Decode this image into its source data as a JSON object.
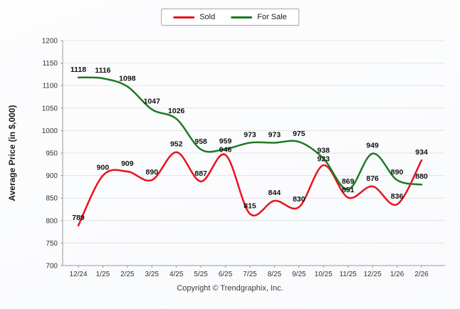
{
  "footer": "Copyright © Trendgraphix, Inc.",
  "chart_data": {
    "type": "line",
    "title": "",
    "xlabel": "",
    "ylabel": "Average Price (in $,000)",
    "categories": [
      "12/24",
      "1/25",
      "2/25",
      "3/25",
      "4/25",
      "5/25",
      "6/25",
      "7/25",
      "8/25",
      "9/25",
      "10/25",
      "11/25",
      "12/25",
      "1/26",
      "2/26"
    ],
    "series": [
      {
        "name": "Sold",
        "color": "#e8131d",
        "values": [
          789,
          900,
          909,
          890,
          952,
          887,
          946,
          815,
          844,
          830,
          923,
          851,
          876,
          836,
          934
        ]
      },
      {
        "name": "For Sale",
        "color": "#1f7a23",
        "values": [
          1118,
          1116,
          1098,
          1047,
          1026,
          958,
          959,
          973,
          973,
          975,
          938,
          869,
          949,
          890,
          880
        ]
      }
    ],
    "ylim": [
      700,
      1200
    ],
    "ytick_step": 50,
    "grid": true,
    "legend_position": "top-center",
    "colors": {
      "grid": "#e3e3e3",
      "axis": "#9a9a9a",
      "tick_text": "#333333",
      "data_label": "#111111"
    }
  }
}
